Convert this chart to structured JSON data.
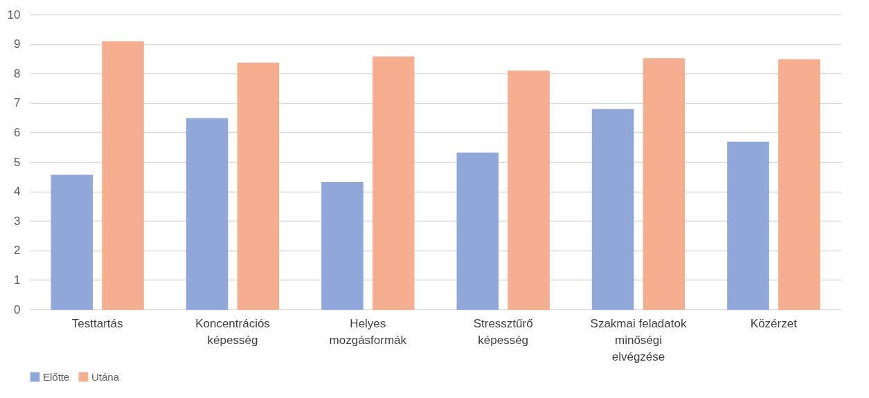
{
  "chart_data": {
    "type": "bar",
    "categories": [
      "Testtartás",
      "Koncentrációs képesség",
      "Helyes mozgásformák",
      "Stressztűrő képesség",
      "Szakmai feladatok minőségi elvégzése",
      "Közérzet"
    ],
    "series": [
      {
        "name": "Előtte",
        "color": "#91a7da",
        "values": [
          4.55,
          6.47,
          4.3,
          5.3,
          6.78,
          5.67
        ]
      },
      {
        "name": "Utána",
        "color": "#f5ae8f",
        "values": [
          9.08,
          8.35,
          8.56,
          8.08,
          8.5,
          8.47
        ]
      }
    ],
    "ylim": [
      0,
      10
    ],
    "yticks": [
      0,
      1,
      2,
      3,
      4,
      5,
      6,
      7,
      8,
      9,
      10
    ],
    "grid": "y",
    "legend": "bottom"
  }
}
